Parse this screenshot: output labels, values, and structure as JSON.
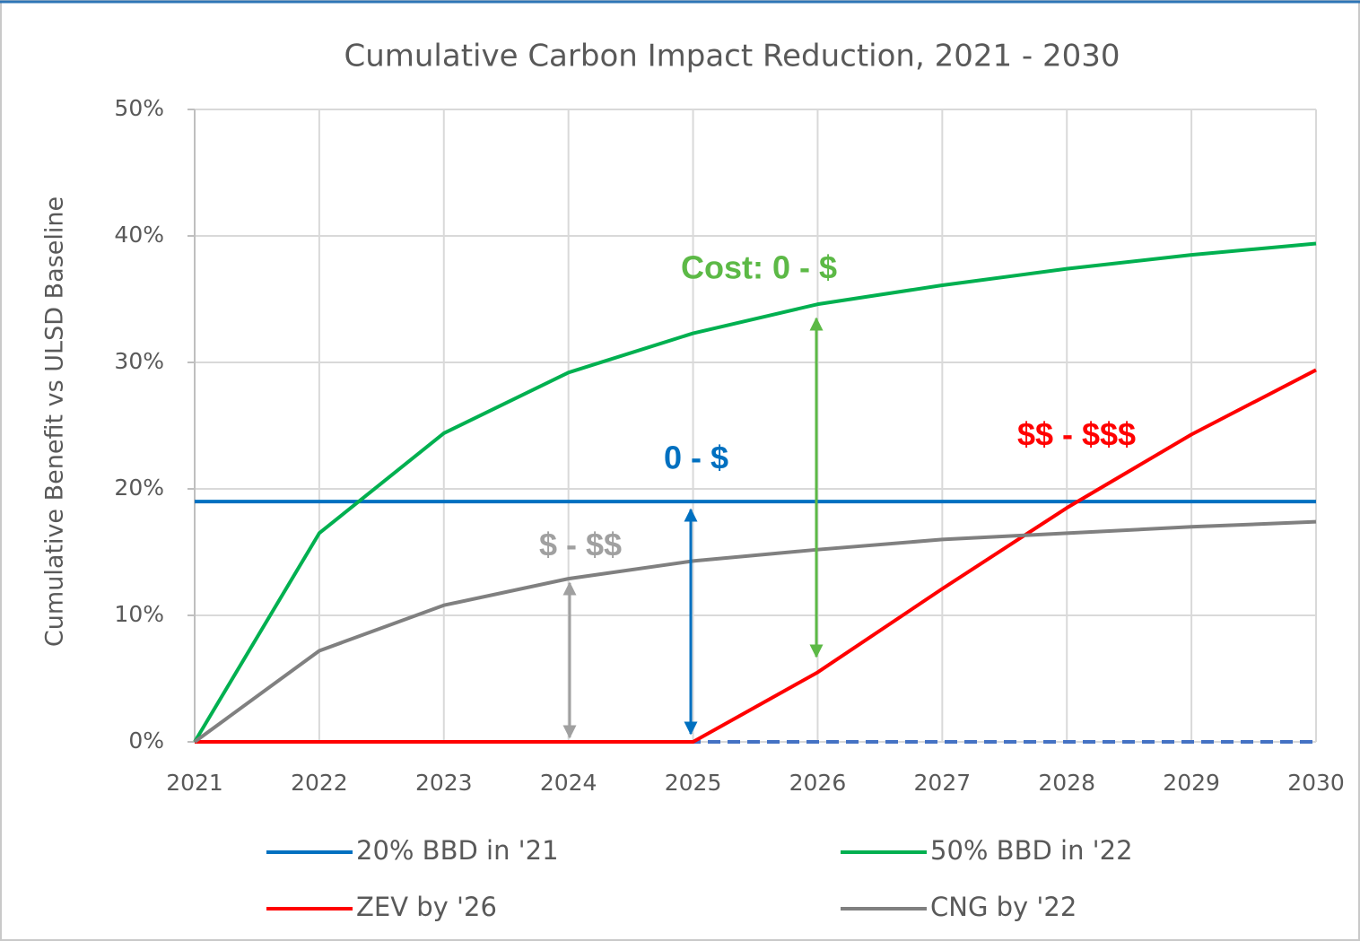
{
  "chart_data": {
    "type": "line",
    "title": "Cumulative Carbon Impact Reduction, 2021 - 2030",
    "y_label": "Cumulative Benefit vs ULSD Baseline",
    "categories": [
      "2021",
      "2022",
      "2023",
      "2024",
      "2025",
      "2026",
      "2027",
      "2028",
      "2029",
      "2030"
    ],
    "series": [
      {
        "name": "20% BBD in '21",
        "color": "#0070c0",
        "values": [
          19,
          19,
          19,
          19,
          19,
          19,
          19,
          19,
          19,
          19
        ]
      },
      {
        "name": "50% BBD in '22",
        "color": "#00b050",
        "values": [
          0,
          16.5,
          24.4,
          29.2,
          32.3,
          34.6,
          36.1,
          37.4,
          38.5,
          39.4
        ]
      },
      {
        "name": "ZEV by '26",
        "color": "#ff0000",
        "values": [
          0,
          0,
          0,
          0,
          0,
          5.5,
          12.1,
          18.5,
          24.3,
          29.4
        ]
      },
      {
        "name": "CNG by '22",
        "color": "#808080",
        "values": [
          0,
          7.2,
          10.8,
          12.9,
          14.3,
          15.2,
          16.0,
          16.5,
          17.0,
          17.4
        ]
      }
    ],
    "ylim": [
      0,
      50
    ],
    "yticks": [
      {
        "value": 0,
        "label": "0%"
      },
      {
        "value": 10,
        "label": "10%"
      },
      {
        "value": 20,
        "label": "20%"
      },
      {
        "value": 30,
        "label": "30%"
      },
      {
        "value": 40,
        "label": "40%"
      },
      {
        "value": 50,
        "label": "50%"
      }
    ],
    "grid": true,
    "legend": "bottom",
    "annotations": [
      {
        "text": "Cost:  0 - $",
        "color": "#5cb946"
      },
      {
        "text": "0 - $",
        "color": "#0070c0"
      },
      {
        "text": "$ - $$",
        "color": "#a0a0a0"
      },
      {
        "text": "$$ - $$$",
        "color": "#ff0000"
      }
    ]
  }
}
